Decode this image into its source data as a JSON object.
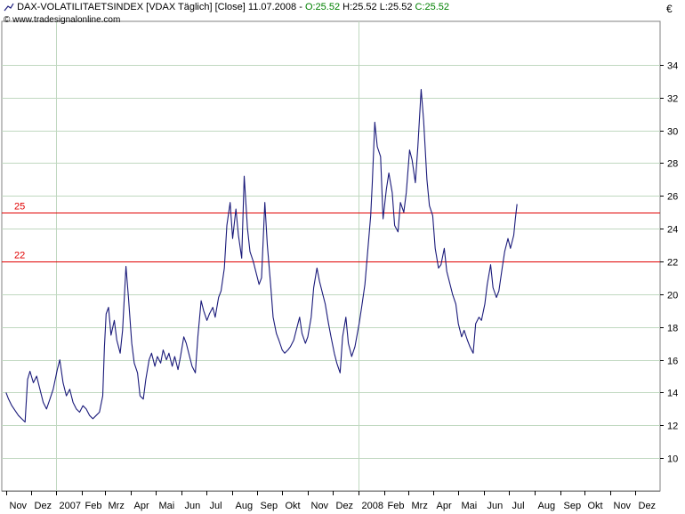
{
  "header": {
    "symbol": "DAX-VOLATILITAETSINDEX",
    "ticker_block": "[VDAX  Täglich]",
    "field": "[Close]",
    "date": "11.07.2008",
    "sep": " - ",
    "open": "O:25.52",
    "high": "H:25.52",
    "low": "L:25.52",
    "close": "C:25.52",
    "copyright": "© www.tradesignalonline.com",
    "currency": "€"
  },
  "colors": {
    "series": "#1a1a7a",
    "reference": "#e00000",
    "grid": "#c0d8c0",
    "ohlc": "#008000"
  },
  "chart_data": {
    "type": "line",
    "ylim": [
      8,
      36
    ],
    "yticks": [
      10,
      12,
      14,
      16,
      18,
      20,
      22,
      24,
      26,
      28,
      30,
      32,
      34
    ],
    "grid": true,
    "xlabels": [
      "Nov",
      "Dez",
      "2007",
      "Feb",
      "Mrz",
      "Apr",
      "Mai",
      "Jun",
      "Jul",
      "Aug",
      "Sep",
      "Okt",
      "Nov",
      "Dez",
      "2008",
      "Feb",
      "Mrz",
      "Apr",
      "Mai",
      "Jun",
      "Jul",
      "Aug",
      "Sep",
      "Okt",
      "Nov",
      "Dez"
    ],
    "reference_lines": [
      {
        "label": "25",
        "value": 25
      },
      {
        "label": "22",
        "value": 22
      }
    ],
    "series": [
      {
        "points": [
          [
            "2006-11-01",
            14.0
          ],
          [
            "2006-11-04",
            13.6
          ],
          [
            "2006-11-08",
            13.2
          ],
          [
            "2006-11-12",
            12.9
          ],
          [
            "2006-11-16",
            12.6
          ],
          [
            "2006-11-20",
            12.4
          ],
          [
            "2006-11-24",
            12.2
          ],
          [
            "2006-11-27",
            14.8
          ],
          [
            "2006-11-30",
            15.3
          ],
          [
            "2006-12-04",
            14.6
          ],
          [
            "2006-12-08",
            15.0
          ],
          [
            "2006-12-12",
            14.2
          ],
          [
            "2006-12-16",
            13.4
          ],
          [
            "2006-12-20",
            13.0
          ],
          [
            "2006-12-24",
            13.6
          ],
          [
            "2006-12-28",
            14.2
          ],
          [
            "2007-01-02",
            15.4
          ],
          [
            "2007-01-05",
            16.0
          ],
          [
            "2007-01-09",
            14.6
          ],
          [
            "2007-01-13",
            13.8
          ],
          [
            "2007-01-17",
            14.2
          ],
          [
            "2007-01-21",
            13.4
          ],
          [
            "2007-01-25",
            13.0
          ],
          [
            "2007-01-29",
            12.8
          ],
          [
            "2007-02-02",
            13.2
          ],
          [
            "2007-02-06",
            13.0
          ],
          [
            "2007-02-10",
            12.6
          ],
          [
            "2007-02-14",
            12.4
          ],
          [
            "2007-02-18",
            12.6
          ],
          [
            "2007-02-22",
            12.8
          ],
          [
            "2007-02-26",
            13.8
          ],
          [
            "2007-02-28",
            16.8
          ],
          [
            "2007-03-02",
            18.8
          ],
          [
            "2007-03-05",
            19.2
          ],
          [
            "2007-03-08",
            17.5
          ],
          [
            "2007-03-12",
            18.4
          ],
          [
            "2007-03-15",
            17.2
          ],
          [
            "2007-03-19",
            16.4
          ],
          [
            "2007-03-22",
            17.8
          ],
          [
            "2007-03-26",
            21.7
          ],
          [
            "2007-03-29",
            19.8
          ],
          [
            "2007-04-02",
            17.0
          ],
          [
            "2007-04-05",
            15.8
          ],
          [
            "2007-04-09",
            15.2
          ],
          [
            "2007-04-12",
            13.8
          ],
          [
            "2007-04-16",
            13.6
          ],
          [
            "2007-04-19",
            14.8
          ],
          [
            "2007-04-23",
            16.0
          ],
          [
            "2007-04-26",
            16.4
          ],
          [
            "2007-04-30",
            15.6
          ],
          [
            "2007-05-03",
            16.2
          ],
          [
            "2007-05-07",
            15.8
          ],
          [
            "2007-05-10",
            16.6
          ],
          [
            "2007-05-14",
            16.0
          ],
          [
            "2007-05-17",
            16.4
          ],
          [
            "2007-05-21",
            15.6
          ],
          [
            "2007-05-24",
            16.2
          ],
          [
            "2007-05-28",
            15.4
          ],
          [
            "2007-05-31",
            16.2
          ],
          [
            "2007-06-04",
            17.4
          ],
          [
            "2007-06-07",
            17.0
          ],
          [
            "2007-06-11",
            16.2
          ],
          [
            "2007-06-14",
            15.6
          ],
          [
            "2007-06-18",
            15.2
          ],
          [
            "2007-06-21",
            17.4
          ],
          [
            "2007-06-25",
            19.6
          ],
          [
            "2007-06-28",
            19.0
          ],
          [
            "2007-07-02",
            18.4
          ],
          [
            "2007-07-05",
            18.8
          ],
          [
            "2007-07-09",
            19.2
          ],
          [
            "2007-07-12",
            18.6
          ],
          [
            "2007-07-16",
            19.8
          ],
          [
            "2007-07-19",
            20.2
          ],
          [
            "2007-07-23",
            21.6
          ],
          [
            "2007-07-26",
            24.2
          ],
          [
            "2007-07-30",
            25.6
          ],
          [
            "2007-08-02",
            23.4
          ],
          [
            "2007-08-06",
            25.2
          ],
          [
            "2007-08-09",
            23.6
          ],
          [
            "2007-08-13",
            22.2
          ],
          [
            "2007-08-16",
            27.2
          ],
          [
            "2007-08-20",
            24.0
          ],
          [
            "2007-08-23",
            22.6
          ],
          [
            "2007-08-27",
            22.0
          ],
          [
            "2007-08-30",
            21.4
          ],
          [
            "2007-09-03",
            20.6
          ],
          [
            "2007-09-06",
            21.0
          ],
          [
            "2007-09-10",
            25.6
          ],
          [
            "2007-09-13",
            23.0
          ],
          [
            "2007-09-17",
            20.6
          ],
          [
            "2007-09-20",
            18.6
          ],
          [
            "2007-09-24",
            17.6
          ],
          [
            "2007-09-27",
            17.2
          ],
          [
            "2007-10-01",
            16.6
          ],
          [
            "2007-10-04",
            16.4
          ],
          [
            "2007-10-08",
            16.6
          ],
          [
            "2007-10-11",
            16.8
          ],
          [
            "2007-10-15",
            17.2
          ],
          [
            "2007-10-18",
            17.8
          ],
          [
            "2007-10-22",
            18.6
          ],
          [
            "2007-10-25",
            17.6
          ],
          [
            "2007-10-29",
            17.0
          ],
          [
            "2007-11-01",
            17.4
          ],
          [
            "2007-11-05",
            18.6
          ],
          [
            "2007-11-08",
            20.4
          ],
          [
            "2007-11-12",
            21.6
          ],
          [
            "2007-11-15",
            20.8
          ],
          [
            "2007-11-19",
            20.0
          ],
          [
            "2007-11-22",
            19.4
          ],
          [
            "2007-11-26",
            18.2
          ],
          [
            "2007-11-29",
            17.4
          ],
          [
            "2007-12-03",
            16.4
          ],
          [
            "2007-12-06",
            15.8
          ],
          [
            "2007-12-10",
            15.2
          ],
          [
            "2007-12-13",
            17.4
          ],
          [
            "2007-12-17",
            18.6
          ],
          [
            "2007-12-20",
            17.0
          ],
          [
            "2007-12-24",
            16.2
          ],
          [
            "2007-12-28",
            16.8
          ],
          [
            "2008-01-02",
            18.2
          ],
          [
            "2008-01-05",
            19.2
          ],
          [
            "2008-01-09",
            20.6
          ],
          [
            "2008-01-12",
            22.4
          ],
          [
            "2008-01-16",
            24.8
          ],
          [
            "2008-01-18",
            26.8
          ],
          [
            "2008-01-21",
            30.5
          ],
          [
            "2008-01-24",
            29.0
          ],
          [
            "2008-01-28",
            28.4
          ],
          [
            "2008-01-31",
            24.6
          ],
          [
            "2008-02-04",
            26.4
          ],
          [
            "2008-02-07",
            27.4
          ],
          [
            "2008-02-11",
            26.2
          ],
          [
            "2008-02-14",
            24.2
          ],
          [
            "2008-02-18",
            23.8
          ],
          [
            "2008-02-21",
            25.6
          ],
          [
            "2008-02-25",
            25.0
          ],
          [
            "2008-02-28",
            26.2
          ],
          [
            "2008-03-03",
            28.8
          ],
          [
            "2008-03-06",
            28.2
          ],
          [
            "2008-03-10",
            26.8
          ],
          [
            "2008-03-13",
            29.0
          ],
          [
            "2008-03-17",
            32.5
          ],
          [
            "2008-03-20",
            30.6
          ],
          [
            "2008-03-24",
            27.0
          ],
          [
            "2008-03-27",
            25.4
          ],
          [
            "2008-03-31",
            24.8
          ],
          [
            "2008-04-03",
            22.8
          ],
          [
            "2008-04-07",
            21.6
          ],
          [
            "2008-04-10",
            21.8
          ],
          [
            "2008-04-14",
            22.8
          ],
          [
            "2008-04-17",
            21.4
          ],
          [
            "2008-04-21",
            20.6
          ],
          [
            "2008-04-24",
            20.0
          ],
          [
            "2008-04-28",
            19.4
          ],
          [
            "2008-05-01",
            18.2
          ],
          [
            "2008-05-05",
            17.4
          ],
          [
            "2008-05-08",
            17.8
          ],
          [
            "2008-05-12",
            17.2
          ],
          [
            "2008-05-15",
            16.8
          ],
          [
            "2008-05-19",
            16.4
          ],
          [
            "2008-05-22",
            18.2
          ],
          [
            "2008-05-26",
            18.6
          ],
          [
            "2008-05-29",
            18.4
          ],
          [
            "2008-06-02",
            19.4
          ],
          [
            "2008-06-05",
            20.6
          ],
          [
            "2008-06-09",
            21.8
          ],
          [
            "2008-06-12",
            20.4
          ],
          [
            "2008-06-16",
            19.8
          ],
          [
            "2008-06-19",
            20.2
          ],
          [
            "2008-06-23",
            21.6
          ],
          [
            "2008-06-26",
            22.6
          ],
          [
            "2008-06-30",
            23.4
          ],
          [
            "2008-07-03",
            22.8
          ],
          [
            "2008-07-07",
            23.6
          ],
          [
            "2008-07-09",
            24.6
          ],
          [
            "2008-07-11",
            25.5
          ]
        ]
      }
    ]
  }
}
